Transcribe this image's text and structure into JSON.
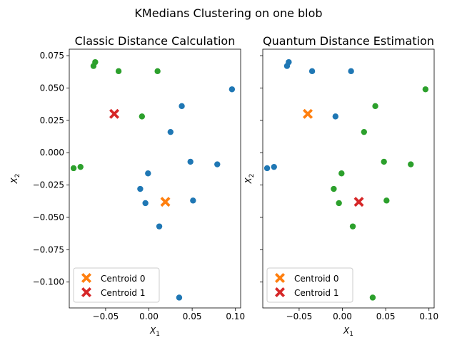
{
  "figure_title": "KMedians Clustering on one blob",
  "colors": {
    "cluster_0": "#1f77b4",
    "cluster_1": "#2ca02c",
    "centroid_0": "#ff7f0e",
    "centroid_1": "#d62728"
  },
  "chart_data": [
    {
      "type": "scatter",
      "title": "Classic Distance Calculation",
      "xlabel": "X_1",
      "ylabel": "X_2",
      "xlim": [
        -0.092,
        0.106
      ],
      "ylim": [
        -0.12,
        0.08
      ],
      "xticks": [
        -0.05,
        0.0,
        0.05,
        0.1
      ],
      "xtick_labels": [
        "−0.05",
        "0.00",
        "0.05",
        "0.10"
      ],
      "yticks": [
        -0.1,
        -0.075,
        -0.05,
        -0.025,
        0.0,
        0.025,
        0.05,
        0.075
      ],
      "ytick_labels": [
        "−0.100",
        "−0.075",
        "−0.050",
        "−0.025",
        "0.000",
        "0.025",
        "0.050",
        "0.075"
      ],
      "show_yticklabels": true,
      "legend": {
        "placement": "lower-left",
        "entries": [
          "Centroid 0",
          "Centroid 1"
        ]
      },
      "series": [
        {
          "cluster": 0,
          "points": [
            [
              0.096,
              0.049
            ],
            [
              0.038,
              0.036
            ],
            [
              0.025,
              0.016
            ],
            [
              0.048,
              -0.007
            ],
            [
              0.079,
              -0.009
            ],
            [
              -0.001,
              -0.016
            ],
            [
              -0.01,
              -0.028
            ],
            [
              -0.004,
              -0.039
            ],
            [
              0.051,
              -0.037
            ],
            [
              0.012,
              -0.057
            ],
            [
              0.035,
              -0.112
            ]
          ]
        },
        {
          "cluster": 1,
          "points": [
            [
              -0.062,
              0.07
            ],
            [
              -0.064,
              0.067
            ],
            [
              -0.035,
              0.063
            ],
            [
              0.01,
              0.063
            ],
            [
              -0.008,
              0.028
            ],
            [
              -0.087,
              -0.012
            ],
            [
              -0.079,
              -0.011
            ]
          ]
        }
      ],
      "centroids": [
        {
          "name": "Centroid 0",
          "x": 0.019,
          "y": -0.038
        },
        {
          "name": "Centroid 1",
          "x": -0.04,
          "y": 0.03
        }
      ]
    },
    {
      "type": "scatter",
      "title": "Quantum Distance Estimation",
      "xlabel": "X_1",
      "ylabel": "X_2",
      "xlim": [
        -0.092,
        0.106
      ],
      "ylim": [
        -0.12,
        0.08
      ],
      "xticks": [
        -0.05,
        0.0,
        0.05,
        0.1
      ],
      "xtick_labels": [
        "−0.05",
        "0.00",
        "0.05",
        "0.10"
      ],
      "yticks": [
        -0.1,
        -0.075,
        -0.05,
        -0.025,
        0.0,
        0.025,
        0.05,
        0.075
      ],
      "ytick_labels": [],
      "show_yticklabels": false,
      "legend": {
        "placement": "lower-left",
        "entries": [
          "Centroid 0",
          "Centroid 1"
        ]
      },
      "series": [
        {
          "cluster": 0,
          "points": [
            [
              -0.062,
              0.07
            ],
            [
              -0.064,
              0.067
            ],
            [
              -0.035,
              0.063
            ],
            [
              0.01,
              0.063
            ],
            [
              -0.008,
              0.028
            ],
            [
              -0.087,
              -0.012
            ],
            [
              -0.079,
              -0.011
            ]
          ]
        },
        {
          "cluster": 1,
          "points": [
            [
              0.096,
              0.049
            ],
            [
              0.038,
              0.036
            ],
            [
              0.025,
              0.016
            ],
            [
              0.048,
              -0.007
            ],
            [
              0.079,
              -0.009
            ],
            [
              -0.001,
              -0.016
            ],
            [
              -0.01,
              -0.028
            ],
            [
              -0.004,
              -0.039
            ],
            [
              0.051,
              -0.037
            ],
            [
              0.012,
              -0.057
            ],
            [
              0.035,
              -0.112
            ]
          ]
        }
      ],
      "centroids": [
        {
          "name": "Centroid 0",
          "x": -0.04,
          "y": 0.03
        },
        {
          "name": "Centroid 1",
          "x": 0.019,
          "y": -0.038
        }
      ]
    }
  ]
}
